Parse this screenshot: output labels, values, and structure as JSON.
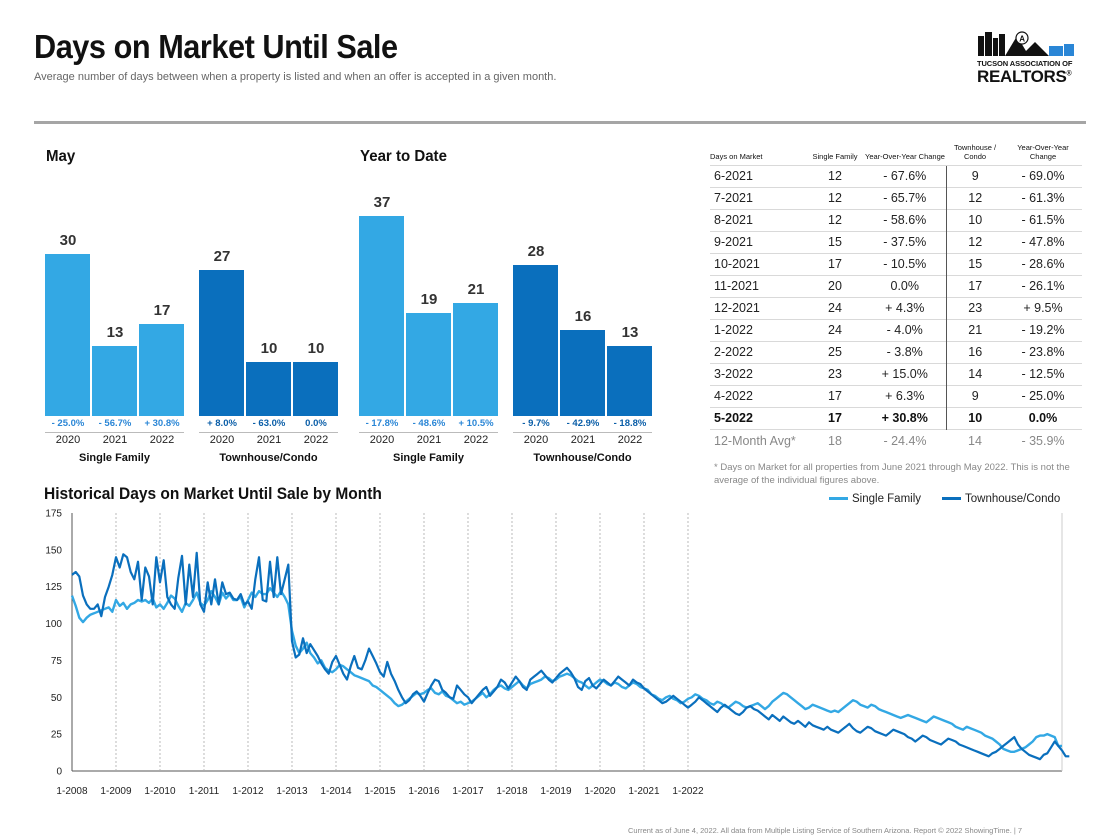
{
  "header": {
    "title": "Days on Market Until Sale",
    "subtitle": "Average number of days between when a property is listed and when an offer is accepted in a given month.",
    "logo_line1": "TUCSON ASSOCIATION OF",
    "logo_line2": "REALTORS",
    "logo_reg": "®"
  },
  "colors": {
    "single_family": "#33a8e4",
    "townhouse": "#0a6fbd",
    "positive_text": "#2a86d6"
  },
  "chart_data": [
    {
      "type": "bar",
      "title": "May",
      "groups": [
        {
          "name": "Single Family",
          "categories": [
            "2020",
            "2021",
            "2022"
          ],
          "values": [
            30,
            13,
            17
          ],
          "changes": [
            "- 25.0%",
            "- 56.7%",
            "+ 30.8%"
          ]
        },
        {
          "name": "Townhouse/Condo",
          "categories": [
            "2020",
            "2021",
            "2022"
          ],
          "values": [
            27,
            10,
            10
          ],
          "changes": [
            "+ 8.0%",
            "- 63.0%",
            "0.0%"
          ]
        }
      ]
    },
    {
      "type": "bar",
      "title": "Year to Date",
      "groups": [
        {
          "name": "Single Family",
          "categories": [
            "2020",
            "2021",
            "2022"
          ],
          "values": [
            37,
            19,
            21
          ],
          "changes": [
            "- 17.8%",
            "- 48.6%",
            "+ 10.5%"
          ]
        },
        {
          "name": "Townhouse/Condo",
          "categories": [
            "2020",
            "2021",
            "2022"
          ],
          "values": [
            28,
            16,
            13
          ],
          "changes": [
            "- 9.7%",
            "- 42.9%",
            "- 18.8%"
          ]
        }
      ]
    },
    {
      "type": "table",
      "columns": [
        "Days on Market",
        "Single Family",
        "Year-Over-Year Change",
        "Townhouse / Condo",
        "Year-Over-Year Change"
      ],
      "rows": [
        [
          "6-2021",
          "12",
          "- 67.6%",
          "9",
          "- 69.0%"
        ],
        [
          "7-2021",
          "12",
          "- 65.7%",
          "12",
          "- 61.3%"
        ],
        [
          "8-2021",
          "12",
          "- 58.6%",
          "10",
          "- 61.5%"
        ],
        [
          "9-2021",
          "15",
          "- 37.5%",
          "12",
          "- 47.8%"
        ],
        [
          "10-2021",
          "17",
          "- 10.5%",
          "15",
          "- 28.6%"
        ],
        [
          "11-2021",
          "20",
          "0.0%",
          "17",
          "- 26.1%"
        ],
        [
          "12-2021",
          "24",
          "+ 4.3%",
          "23",
          "+ 9.5%"
        ],
        [
          "1-2022",
          "24",
          "- 4.0%",
          "21",
          "- 19.2%"
        ],
        [
          "2-2022",
          "25",
          "- 3.8%",
          "16",
          "- 23.8%"
        ],
        [
          "3-2022",
          "23",
          "+ 15.0%",
          "14",
          "- 12.5%"
        ],
        [
          "4-2022",
          "17",
          "+ 6.3%",
          "9",
          "- 25.0%"
        ],
        [
          "5-2022",
          "17",
          "+ 30.8%",
          "10",
          "0.0%"
        ]
      ],
      "average_row": [
        "12-Month Avg*",
        "18",
        "- 24.4%",
        "14",
        "- 35.9%"
      ]
    },
    {
      "type": "line",
      "title": "Historical Days on Market Until Sale by Month",
      "ylim": [
        0,
        175
      ],
      "yticks": [
        0,
        25,
        50,
        75,
        100,
        125,
        150,
        175
      ],
      "xticks": [
        "1-2008",
        "1-2009",
        "1-2010",
        "1-2011",
        "1-2012",
        "1-2013",
        "1-2014",
        "1-2015",
        "1-2016",
        "1-2017",
        "1-2018",
        "1-2019",
        "1-2020",
        "1-2021",
        "1-2022"
      ],
      "x_start": "1-2008",
      "x_end": "5-2022",
      "series": [
        {
          "name": "Single Family",
          "values": [
            119,
            112,
            104,
            101,
            104,
            106,
            107,
            108,
            109,
            110,
            111,
            108,
            116,
            112,
            114,
            110,
            113,
            114,
            116,
            115,
            116,
            114,
            117,
            111,
            113,
            110,
            114,
            119,
            117,
            112,
            108,
            114,
            112,
            116,
            121,
            114,
            112,
            116,
            122,
            118,
            113,
            121,
            117,
            120,
            116,
            116,
            118,
            111,
            116,
            121,
            118,
            122,
            120,
            120,
            124,
            121,
            118,
            122,
            118,
            113,
            95,
            85,
            80,
            83,
            87,
            80,
            77,
            73,
            75,
            70,
            68,
            67,
            69,
            72,
            71,
            69,
            67,
            65,
            64,
            63,
            62,
            61,
            58,
            57,
            55,
            53,
            51,
            49,
            46,
            44,
            45,
            47,
            49,
            51,
            53,
            52,
            53,
            55,
            56,
            53,
            52,
            54,
            51,
            50,
            48,
            46,
            47,
            45,
            46,
            47,
            49,
            51,
            53,
            50,
            52,
            55,
            57,
            58,
            56,
            55,
            57,
            59,
            61,
            58,
            56,
            59,
            60,
            61,
            62,
            64,
            63,
            61,
            62,
            64,
            65,
            66,
            65,
            63,
            61,
            60,
            58,
            56,
            58,
            60,
            62,
            61,
            59,
            58,
            60,
            59,
            57,
            56,
            58,
            60,
            59,
            57,
            56,
            55,
            52,
            51,
            49,
            48,
            50,
            51,
            49,
            48,
            46,
            47,
            49,
            50,
            52,
            51,
            49,
            48,
            46,
            45,
            47,
            46,
            44,
            43,
            45,
            47,
            46,
            44,
            43,
            44,
            45,
            46,
            44,
            42,
            44,
            47,
            49,
            51,
            53,
            52,
            50,
            48,
            46,
            44,
            42,
            43,
            45,
            44,
            43,
            42,
            41,
            40,
            41,
            40,
            42,
            44,
            46,
            48,
            47,
            45,
            44,
            43,
            45,
            44,
            42,
            41,
            40,
            39,
            38,
            37,
            36,
            37,
            38,
            37,
            36,
            35,
            34,
            33,
            35,
            37,
            36,
            35,
            34,
            33,
            32,
            30,
            29,
            28,
            30,
            29,
            28,
            27,
            26,
            24,
            23,
            22,
            20,
            18,
            15,
            14,
            13,
            13,
            14,
            15,
            16,
            18,
            20,
            23,
            24,
            24,
            25,
            24,
            23,
            17,
            17
          ]
        },
        {
          "name": "Townhouse/Condo",
          "values": [
            133,
            135,
            132,
            119,
            113,
            110,
            110,
            113,
            105,
            118,
            125,
            133,
            145,
            138,
            147,
            145,
            135,
            130,
            142,
            116,
            138,
            132,
            113,
            145,
            128,
            143,
            118,
            113,
            110,
            131,
            146,
            113,
            140,
            118,
            148,
            113,
            108,
            128,
            113,
            130,
            113,
            128,
            120,
            121,
            117,
            116,
            120,
            113,
            115,
            110,
            130,
            145,
            116,
            115,
            142,
            118,
            145,
            120,
            130,
            140,
            88,
            77,
            79,
            90,
            80,
            86,
            82,
            78,
            73,
            69,
            66,
            74,
            78,
            72,
            66,
            62,
            71,
            78,
            70,
            69,
            75,
            83,
            78,
            73,
            67,
            64,
            74,
            66,
            61,
            55,
            50,
            46,
            48,
            52,
            54,
            51,
            47,
            53,
            58,
            62,
            61,
            55,
            53,
            50,
            49,
            58,
            55,
            52,
            50,
            46,
            49,
            52,
            55,
            57,
            51,
            54,
            57,
            62,
            60,
            56,
            60,
            64,
            61,
            57,
            55,
            62,
            64,
            66,
            68,
            65,
            62,
            60,
            63,
            66,
            68,
            70,
            67,
            63,
            57,
            55,
            61,
            63,
            58,
            56,
            59,
            62,
            60,
            58,
            61,
            64,
            62,
            60,
            58,
            62,
            60,
            59,
            56,
            54,
            52,
            50,
            48,
            46,
            47,
            49,
            51,
            49,
            47,
            45,
            43,
            45,
            47,
            50,
            48,
            46,
            44,
            42,
            40,
            43,
            45,
            43,
            41,
            39,
            38,
            40,
            43,
            44,
            42,
            41,
            39,
            37,
            35,
            38,
            36,
            34,
            37,
            35,
            33,
            32,
            34,
            32,
            30,
            33,
            31,
            30,
            29,
            28,
            30,
            28,
            27,
            26,
            28,
            30,
            32,
            29,
            27,
            26,
            28,
            30,
            29,
            27,
            26,
            25,
            24,
            26,
            28,
            27,
            26,
            25,
            23,
            22,
            20,
            22,
            24,
            23,
            21,
            20,
            19,
            18,
            20,
            22,
            21,
            20,
            18,
            17,
            16,
            15,
            14,
            13,
            12,
            11,
            10,
            12,
            13,
            15,
            17,
            19,
            21,
            23,
            18,
            15,
            13,
            11,
            10,
            9,
            8,
            11,
            12,
            16,
            20,
            17,
            14,
            10,
            10
          ]
        }
      ]
    }
  ],
  "footnote": "* Days on Market for all properties from June 2021 through May 2022. This is not the average of the individual figures above.",
  "footer": "Current as of June 4, 2022. All data from Multiple Listing Service of Southern Arizona. Report © 2022 ShowingTime.  |  7"
}
